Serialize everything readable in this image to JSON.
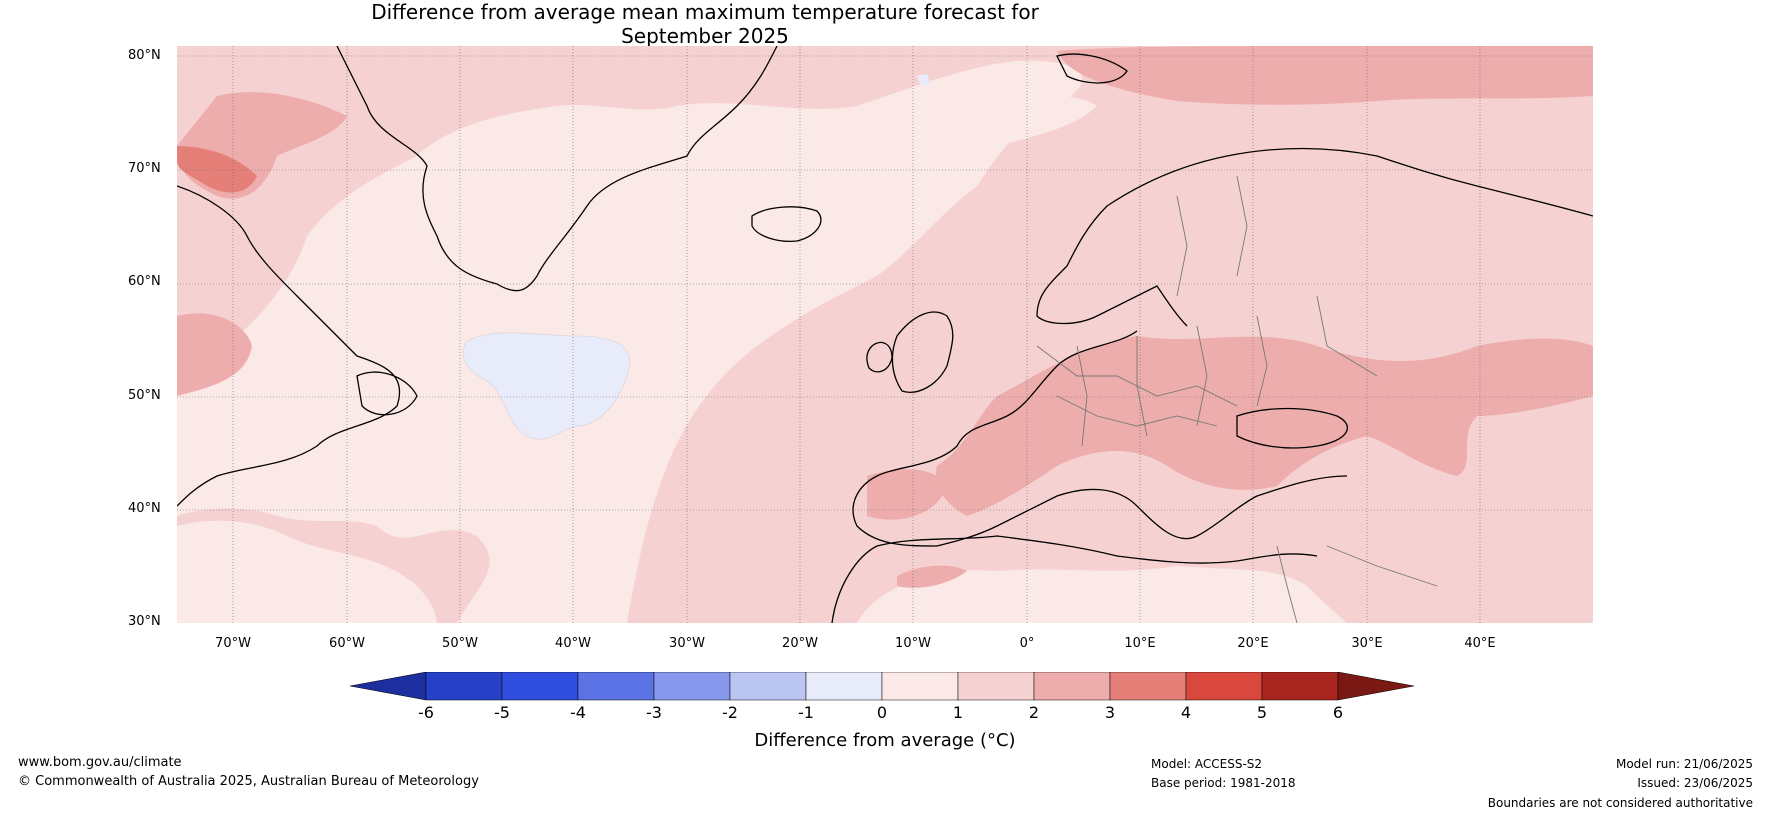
{
  "title_line1": "Difference from average mean maximum temperature forecast for",
  "title_line2": "September 2025",
  "lat_labels": [
    "80°N",
    "70°N",
    "60°N",
    "50°N",
    "40°N",
    "30°N"
  ],
  "lon_labels": [
    "70°W",
    "60°W",
    "50°W",
    "40°W",
    "30°W",
    "20°W",
    "10°W",
    "0°",
    "10°E",
    "20°E",
    "30°E",
    "40°E"
  ],
  "colorbar": {
    "ticks": [
      "-6",
      "-5",
      "-4",
      "-3",
      "-2",
      "-1",
      "0",
      "1",
      "2",
      "3",
      "4",
      "5",
      "6"
    ],
    "colors": [
      "#1d2f9e",
      "#2740c8",
      "#2f4ee0",
      "#5c73e6",
      "#8898ec",
      "#bcc6f2",
      "#e8ebfa",
      "#fbe9e8",
      "#f5d2d1",
      "#eeadad",
      "#e58079",
      "#d9473d",
      "#a8261f",
      "#7a1814"
    ],
    "label": "Difference from average (°C)"
  },
  "colors": {
    "bin_0_1": "#fbe9e8",
    "bin_1_2": "#f5d2d1",
    "bin_2_3": "#eeadad",
    "bin_3_4": "#e58079",
    "bin_m1_0": "#e8ebfa"
  },
  "footer": {
    "website": "www.bom.gov.au/climate",
    "copyright": "© Commonwealth of Australia 2025, Australian Bureau of Meteorology",
    "model": "Model: ACCESS-S2",
    "base_period": "Base period: 1981-2018",
    "model_run": "Model run: 21/06/2025",
    "issued": "Issued: 23/06/2025",
    "disclaimer": "Boundaries are not considered authoritative"
  }
}
